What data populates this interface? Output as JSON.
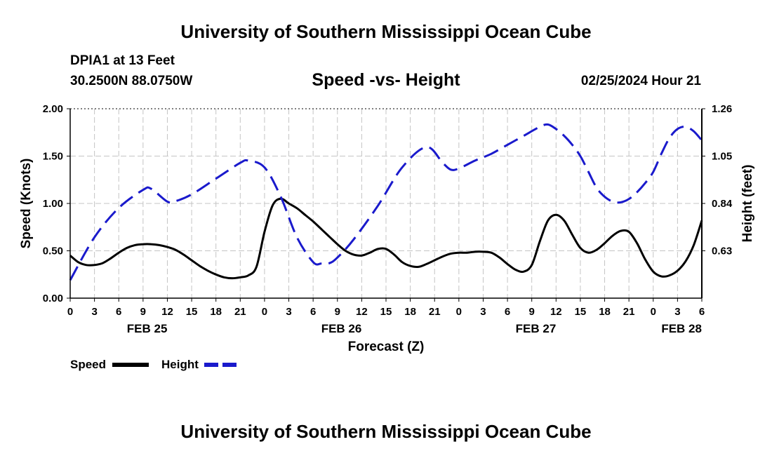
{
  "header": {
    "title": "University of Southern Mississippi Ocean Cube",
    "station": "DPIA1 at 13 Feet",
    "coords": "30.2500N  88.0750W",
    "subtitle": "Speed -vs- Height",
    "date": "02/25/2024 Hour 21"
  },
  "footer": {
    "title": "University of Southern Mississippi Ocean Cube"
  },
  "chart_data": {
    "type": "line",
    "title": "Speed -vs- Height",
    "xlabel": "Forecast (Z)",
    "ylabel": "Speed (Knots)",
    "y2label": "Height (feet)",
    "x_unit": "hours since FEB 25 00Z",
    "xlim": [
      0,
      78
    ],
    "ylim": [
      0,
      2.0
    ],
    "y2lim": [
      0.42,
      1.26
    ],
    "x_ticks": [
      0,
      3,
      6,
      9,
      12,
      15,
      18,
      21,
      24,
      27,
      30,
      33,
      36,
      39,
      42,
      45,
      48,
      51,
      54,
      57,
      60,
      63,
      66,
      69,
      72,
      75,
      78
    ],
    "x_tick_labels": [
      "0",
      "3",
      "6",
      "9",
      "12",
      "15",
      "18",
      "21",
      "0",
      "3",
      "6",
      "9",
      "12",
      "15",
      "18",
      "21",
      "0",
      "3",
      "6",
      "9",
      "12",
      "15",
      "18",
      "21",
      "0",
      "3",
      "6"
    ],
    "y_ticks": [
      0,
      0.5,
      1.0,
      1.5,
      2.0
    ],
    "y_tick_labels": [
      "0.00",
      "0.50",
      "1.00",
      "1.50",
      "2.00"
    ],
    "y2_ticks": [
      0.63,
      0.84,
      1.05,
      1.26
    ],
    "y2_tick_labels": [
      "0.63",
      "0.84",
      "1.05",
      "1.26"
    ],
    "day_labels": [
      {
        "x": 9.5,
        "label": "FEB 25"
      },
      {
        "x": 33.5,
        "label": "FEB 26"
      },
      {
        "x": 57.5,
        "label": "FEB 27"
      },
      {
        "x": 75.5,
        "label": "FEB 28"
      }
    ],
    "grid": true,
    "legend": "bottom-left",
    "series": [
      {
        "name": "Speed",
        "axis": "left",
        "color": "#000000",
        "style": "solid",
        "x": [
          0,
          1,
          2,
          3,
          4,
          5,
          6,
          7,
          8,
          9,
          10,
          11,
          12,
          13,
          14,
          15,
          16,
          17,
          18,
          19,
          20,
          21,
          22,
          23,
          24,
          25,
          26,
          27,
          28,
          29,
          30,
          31,
          32,
          33,
          34,
          35,
          36,
          37,
          38,
          39,
          40,
          41,
          42,
          43,
          44,
          45,
          46,
          47,
          48,
          49,
          50,
          51,
          52,
          53,
          54,
          55,
          56,
          57,
          58,
          59,
          60,
          61,
          62,
          63,
          64,
          65,
          66,
          67,
          68,
          69,
          70,
          71,
          72,
          73,
          74,
          75,
          76,
          77,
          78
        ],
        "values": [
          0.45,
          0.38,
          0.35,
          0.35,
          0.37,
          0.42,
          0.48,
          0.53,
          0.56,
          0.57,
          0.57,
          0.56,
          0.54,
          0.51,
          0.46,
          0.4,
          0.34,
          0.29,
          0.25,
          0.22,
          0.21,
          0.22,
          0.24,
          0.33,
          0.7,
          0.98,
          1.05,
          1.0,
          0.95,
          0.88,
          0.81,
          0.73,
          0.65,
          0.57,
          0.5,
          0.46,
          0.45,
          0.48,
          0.52,
          0.52,
          0.46,
          0.38,
          0.34,
          0.33,
          0.36,
          0.4,
          0.44,
          0.47,
          0.48,
          0.48,
          0.49,
          0.49,
          0.48,
          0.43,
          0.36,
          0.3,
          0.28,
          0.35,
          0.6,
          0.82,
          0.88,
          0.82,
          0.67,
          0.53,
          0.48,
          0.51,
          0.58,
          0.66,
          0.71,
          0.7,
          0.58,
          0.41,
          0.28,
          0.23,
          0.24,
          0.29,
          0.39,
          0.56,
          0.82
        ]
      },
      {
        "name": "Height",
        "axis": "right",
        "color": "#1a1acc",
        "style": "dashed",
        "x": [
          0,
          3,
          6,
          9,
          10,
          12,
          13,
          15,
          18,
          21,
          22,
          24,
          26,
          28,
          30,
          31,
          32,
          33,
          35,
          38,
          41,
          44,
          46,
          47,
          48,
          50,
          52,
          54,
          56,
          58,
          59,
          60,
          61,
          62,
          63,
          64,
          65,
          66,
          67,
          68,
          69,
          70,
          71,
          72,
          73,
          74,
          75,
          76,
          77,
          78
        ],
        "values": [
          0.5,
          0.69,
          0.82,
          0.9,
          0.905,
          0.848,
          0.85,
          0.88,
          0.95,
          1.02,
          1.03,
          1.0,
          0.87,
          0.69,
          0.58,
          0.573,
          0.575,
          0.6,
          0.68,
          0.83,
          1.0,
          1.09,
          1.02,
          0.99,
          0.995,
          1.03,
          1.06,
          1.1,
          1.14,
          1.18,
          1.19,
          1.17,
          1.14,
          1.1,
          1.05,
          0.98,
          0.91,
          0.87,
          0.848,
          0.845,
          0.86,
          0.89,
          0.93,
          0.98,
          1.06,
          1.13,
          1.17,
          1.18,
          1.16,
          1.12
        ]
      }
    ]
  }
}
